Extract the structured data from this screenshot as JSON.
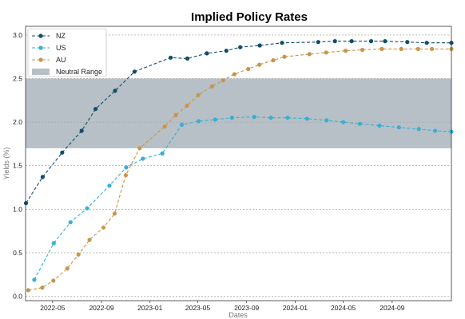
{
  "chart_data": {
    "type": "line",
    "title": "Implied Policy Rates",
    "xlabel": "Dates",
    "ylabel": "Yields (%)",
    "ylim": [
      -0.05,
      3.1
    ],
    "yticks": [
      "0.0",
      "0.5",
      "1.0",
      "1.5",
      "2.0",
      "2.5",
      "3.0"
    ],
    "xticks": [
      "2022-05",
      "2022-09",
      "2023-01",
      "2023-05",
      "2023-09",
      "2024-01",
      "2024-05",
      "2024-09"
    ],
    "xrange": [
      "2022-02-22",
      "2025-01-28"
    ],
    "grid": "horizontal dotted",
    "legend_position": "top-left",
    "neutral_range": {
      "name": "Neutral Range",
      "low": 1.7,
      "high": 2.5,
      "color": "#b7c0c6"
    },
    "series": [
      {
        "name": "NZ",
        "color": "#0f4d6b",
        "x": [
          "2022-02-23",
          "2022-04-06",
          "2022-05-25",
          "2022-07-13",
          "2022-08-17",
          "2022-10-05",
          "2022-11-23",
          "2023-02-22",
          "2023-04-05",
          "2023-05-24",
          "2023-07-12",
          "2023-08-16",
          "2023-10-04",
          "2023-11-29",
          "2024-02-28",
          "2024-04-10",
          "2024-05-22",
          "2024-07-10",
          "2024-08-14",
          "2024-10-09",
          "2024-11-27",
          "2025-01-28"
        ],
        "values": [
          1.07,
          1.37,
          1.65,
          1.9,
          2.15,
          2.36,
          2.58,
          2.74,
          2.73,
          2.79,
          2.82,
          2.86,
          2.88,
          2.91,
          2.92,
          2.93,
          2.93,
          2.93,
          2.93,
          2.92,
          2.91,
          2.91
        ]
      },
      {
        "name": "US",
        "color": "#3aaed3",
        "x": [
          "2022-03-16",
          "2022-05-04",
          "2022-06-15",
          "2022-07-27",
          "2022-09-21",
          "2022-11-02",
          "2022-12-14",
          "2023-02-01",
          "2023-03-22",
          "2023-05-03",
          "2023-06-14",
          "2023-07-26",
          "2023-09-20",
          "2023-11-01",
          "2023-12-13",
          "2024-01-31",
          "2024-03-20",
          "2024-05-01",
          "2024-06-12",
          "2024-07-31",
          "2024-09-18",
          "2024-11-07",
          "2024-12-18",
          "2025-01-28"
        ],
        "values": [
          0.19,
          0.61,
          0.85,
          1.01,
          1.27,
          1.48,
          1.58,
          1.64,
          1.97,
          2.01,
          2.03,
          2.05,
          2.06,
          2.05,
          2.05,
          2.04,
          2.02,
          2.0,
          1.98,
          1.96,
          1.94,
          1.92,
          1.9,
          1.89
        ]
      },
      {
        "name": "AU",
        "color": "#c9954a",
        "x": [
          "2022-03-01",
          "2022-04-05",
          "2022-05-03",
          "2022-06-07",
          "2022-07-05",
          "2022-08-02",
          "2022-09-06",
          "2022-10-04",
          "2022-11-01",
          "2022-12-06",
          "2023-02-07",
          "2023-03-07",
          "2023-04-04",
          "2023-05-02",
          "2023-06-06",
          "2023-07-04",
          "2023-08-01",
          "2023-09-05",
          "2023-10-03",
          "2023-11-07",
          "2023-12-05",
          "2024-02-06",
          "2024-03-19",
          "2024-05-07",
          "2024-06-18",
          "2024-08-06",
          "2024-09-24",
          "2024-11-05",
          "2024-12-10",
          "2025-01-28"
        ],
        "values": [
          0.07,
          0.1,
          0.18,
          0.32,
          0.48,
          0.65,
          0.79,
          0.95,
          1.39,
          1.7,
          1.95,
          2.08,
          2.19,
          2.31,
          2.41,
          2.48,
          2.55,
          2.61,
          2.66,
          2.71,
          2.75,
          2.78,
          2.8,
          2.82,
          2.83,
          2.84,
          2.84,
          2.84,
          2.84,
          2.84
        ]
      }
    ]
  }
}
